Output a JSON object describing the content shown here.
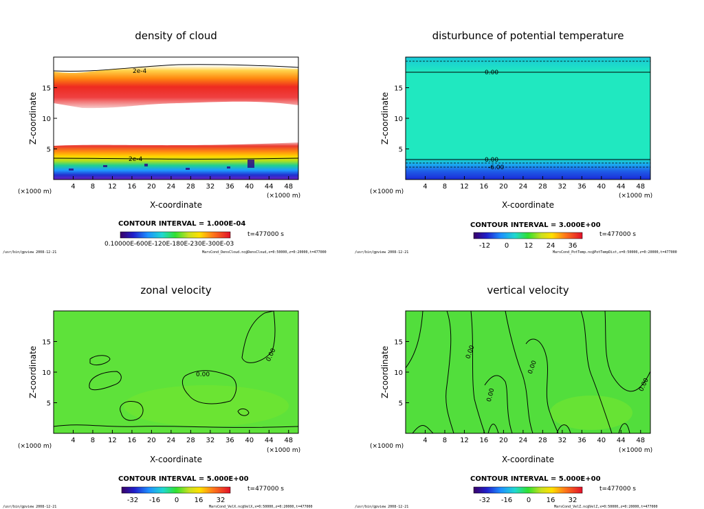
{
  "chart_data": [
    {
      "type": "heatmap",
      "title": "density of cloud",
      "xlabel": "X-coordinate",
      "ylabel": "Z-coordinate",
      "x_unit": "(×1000 m)",
      "xlim": [
        0,
        50
      ],
      "ylim": [
        0,
        20
      ],
      "x_ticks": [
        "4",
        "8",
        "12",
        "16",
        "20",
        "24",
        "28",
        "32",
        "36",
        "40",
        "44",
        "48"
      ],
      "y_ticks": [
        "5",
        "10",
        "15"
      ],
      "contour_labels": [
        "2e-4",
        "2e-4"
      ],
      "contour_interval": "CONTOUR INTERVAL = 1.000E-04",
      "time": "t=477000  s",
      "colorbar_labels": "0.10000E-600E-120E-180E-230E-300E-03",
      "footer_left": "/usr/bin/gpview  2008-12-21",
      "footer_right": "MarsCond_DensCloud.nc@DensCloud,x=0:50000,z=0:20000,t=477000"
    },
    {
      "type": "heatmap",
      "title": "disturbunce of potential temperature",
      "xlabel": "X-coordinate",
      "ylabel": "Z-coordinate",
      "x_unit": "(×1000 m)",
      "xlim": [
        0,
        50
      ],
      "ylim": [
        0,
        20
      ],
      "x_ticks": [
        "4",
        "8",
        "12",
        "16",
        "20",
        "24",
        "28",
        "32",
        "36",
        "40",
        "44",
        "48"
      ],
      "y_ticks": [
        "5",
        "10",
        "15"
      ],
      "contour_labels": [
        "0.00",
        "0.00",
        "-6.00"
      ],
      "contour_interval": "CONTOUR INTERVAL = 3.000E+00",
      "time": "t=477000  s",
      "colorbar_ticks": [
        "-12",
        "0",
        "12",
        "24",
        "36"
      ],
      "footer_left": "/usr/bin/gpview  2008-12-21",
      "footer_right": "MarsCond_PotTemp.nc@PotTempDist,x=0:50000,z=0:20000,t=477000"
    },
    {
      "type": "heatmap",
      "title": "zonal velocity",
      "xlabel": "X-coordinate",
      "ylabel": "Z-coordinate",
      "x_unit": "(×1000 m)",
      "xlim": [
        0,
        50
      ],
      "ylim": [
        0,
        20
      ],
      "x_ticks": [
        "4",
        "8",
        "12",
        "16",
        "20",
        "24",
        "28",
        "32",
        "36",
        "40",
        "44",
        "48"
      ],
      "y_ticks": [
        "5",
        "10",
        "15"
      ],
      "contour_labels": [
        "0.00",
        "0.00"
      ],
      "contour_interval": "CONTOUR INTERVAL = 5.000E+00",
      "time": "t=477000  s",
      "colorbar_ticks": [
        "-32",
        "-16",
        "0",
        "16",
        "32"
      ],
      "footer_left": "/usr/bin/gpview  2008-12-21",
      "footer_right": "MarsCond_VelX.nc@VelX,x=0:50000,z=0:20000,t=477000"
    },
    {
      "type": "heatmap",
      "title": "vertical velocity",
      "xlabel": "X-coordinate",
      "ylabel": "Z-coordinate",
      "x_unit": "(×1000 m)",
      "xlim": [
        0,
        50
      ],
      "ylim": [
        0,
        20
      ],
      "x_ticks": [
        "4",
        "8",
        "12",
        "16",
        "20",
        "24",
        "28",
        "32",
        "36",
        "40",
        "44",
        "48"
      ],
      "y_ticks": [
        "5",
        "10",
        "15"
      ],
      "contour_labels": [
        "0.00",
        "0.00",
        "0.00",
        "0.00"
      ],
      "contour_interval": "CONTOUR INTERVAL = 5.000E+00",
      "time": "t=477000  s",
      "colorbar_ticks": [
        "-32",
        "-16",
        "0",
        "16",
        "32"
      ],
      "footer_left": "/usr/bin/gpview  2008-12-21",
      "footer_right": "MarsCond_VelZ.nc@VelZ,x=0:50000,z=0:20000,t=477000"
    }
  ]
}
